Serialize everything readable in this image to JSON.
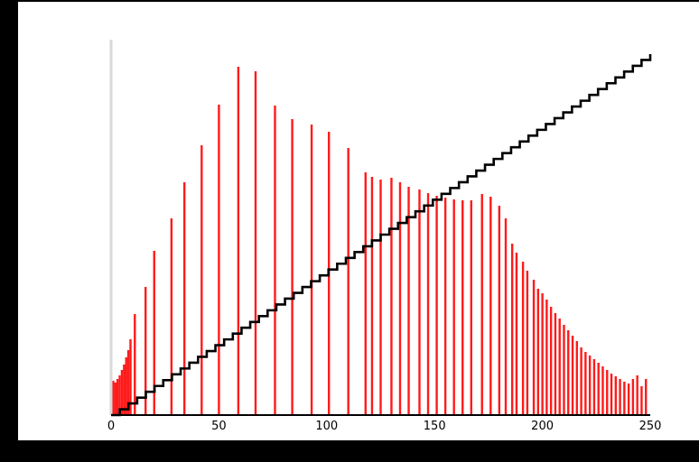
{
  "chart_data": {
    "type": "bar",
    "xlim": [
      0,
      250
    ],
    "x_ticks": [
      "0",
      "50",
      "100",
      "150",
      "200",
      "250"
    ],
    "grid": false,
    "legend": "none",
    "bar_color": "#ff1a1a",
    "line_color": "#000000",
    "axis_color": "#d9d9d9",
    "series": [
      {
        "type": "bar",
        "tall_bars": [
          {
            "x": 1,
            "value": 38
          },
          {
            "x": 2,
            "value": 36
          },
          {
            "x": 3,
            "value": 40
          },
          {
            "x": 4,
            "value": 44
          },
          {
            "x": 5,
            "value": 50
          },
          {
            "x": 6,
            "value": 56
          },
          {
            "x": 7,
            "value": 64
          },
          {
            "x": 8,
            "value": 72
          },
          {
            "x": 9,
            "value": 84
          },
          {
            "x": 11,
            "value": 112
          },
          {
            "x": 16,
            "value": 142
          },
          {
            "x": 20,
            "value": 182
          },
          {
            "x": 28,
            "value": 218
          },
          {
            "x": 34,
            "value": 258
          },
          {
            "x": 42,
            "value": 299
          },
          {
            "x": 50,
            "value": 344
          },
          {
            "x": 59,
            "value": 386
          },
          {
            "x": 67,
            "value": 381
          },
          {
            "x": 76,
            "value": 343
          },
          {
            "x": 84,
            "value": 328
          },
          {
            "x": 93,
            "value": 322
          },
          {
            "x": 101,
            "value": 314
          },
          {
            "x": 110,
            "value": 296
          },
          {
            "x": 118,
            "value": 269
          },
          {
            "x": 121,
            "value": 264
          },
          {
            "x": 125,
            "value": 261
          },
          {
            "x": 130,
            "value": 263
          },
          {
            "x": 134,
            "value": 258
          },
          {
            "x": 138,
            "value": 253
          },
          {
            "x": 143,
            "value": 250
          },
          {
            "x": 147,
            "value": 246
          },
          {
            "x": 151,
            "value": 243
          },
          {
            "x": 155,
            "value": 241
          },
          {
            "x": 159,
            "value": 239
          },
          {
            "x": 163,
            "value": 238
          },
          {
            "x": 167,
            "value": 238
          },
          {
            "x": 172,
            "value": 245
          },
          {
            "x": 176,
            "value": 242
          },
          {
            "x": 180,
            "value": 232
          },
          {
            "x": 183,
            "value": 218
          },
          {
            "x": 186,
            "value": 190
          },
          {
            "x": 188,
            "value": 180
          },
          {
            "x": 191,
            "value": 170
          },
          {
            "x": 193,
            "value": 160
          },
          {
            "x": 196,
            "value": 150
          },
          {
            "x": 198,
            "value": 140
          },
          {
            "x": 200,
            "value": 135
          },
          {
            "x": 202,
            "value": 128
          },
          {
            "x": 204,
            "value": 120
          },
          {
            "x": 206,
            "value": 113
          },
          {
            "x": 208,
            "value": 107
          },
          {
            "x": 210,
            "value": 100
          },
          {
            "x": 212,
            "value": 94
          },
          {
            "x": 214,
            "value": 88
          },
          {
            "x": 216,
            "value": 82
          },
          {
            "x": 218,
            "value": 75
          },
          {
            "x": 220,
            "value": 70
          },
          {
            "x": 222,
            "value": 66
          },
          {
            "x": 224,
            "value": 62
          },
          {
            "x": 226,
            "value": 58
          },
          {
            "x": 228,
            "value": 54
          },
          {
            "x": 230,
            "value": 50
          },
          {
            "x": 232,
            "value": 46
          },
          {
            "x": 234,
            "value": 43
          },
          {
            "x": 236,
            "value": 40
          },
          {
            "x": 238,
            "value": 37
          },
          {
            "x": 240,
            "value": 35
          },
          {
            "x": 242,
            "value": 40
          },
          {
            "x": 244,
            "value": 44
          },
          {
            "x": 246,
            "value": 32
          },
          {
            "x": 248,
            "value": 40
          }
        ]
      },
      {
        "type": "step",
        "description_points": [
          {
            "x": 0,
            "value": 0
          },
          {
            "x": 250,
            "value": 400
          }
        ]
      }
    ]
  }
}
